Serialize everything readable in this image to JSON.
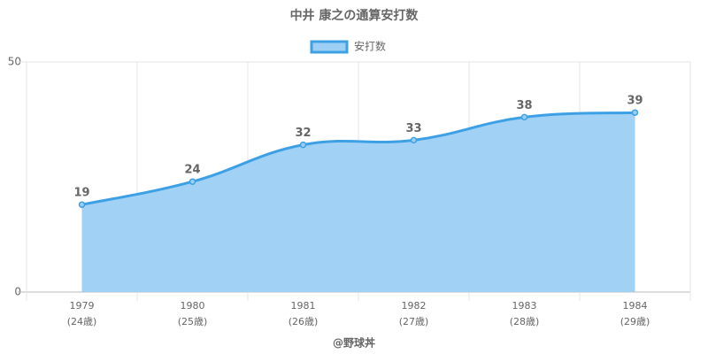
{
  "chart_data": {
    "type": "line",
    "title": "中井 康之の通算安打数",
    "categories": [
      [
        "1979",
        "(24歳)"
      ],
      [
        "1980",
        "(25歳)"
      ],
      [
        "1981",
        "(26歳)"
      ],
      [
        "1982",
        "(27歳)"
      ],
      [
        "1983",
        "(28歳)"
      ],
      [
        "1984",
        "(29歳)"
      ]
    ],
    "series": [
      {
        "name": "安打数",
        "color": "#3ea0e4",
        "fill": "#9dcff5",
        "values": [
          19,
          24,
          32,
          33,
          38,
          39
        ]
      }
    ],
    "ylim": [
      0,
      50
    ],
    "yticks": [
      0,
      50
    ],
    "grid": true,
    "legend": "top",
    "footer": "@野球丼"
  }
}
